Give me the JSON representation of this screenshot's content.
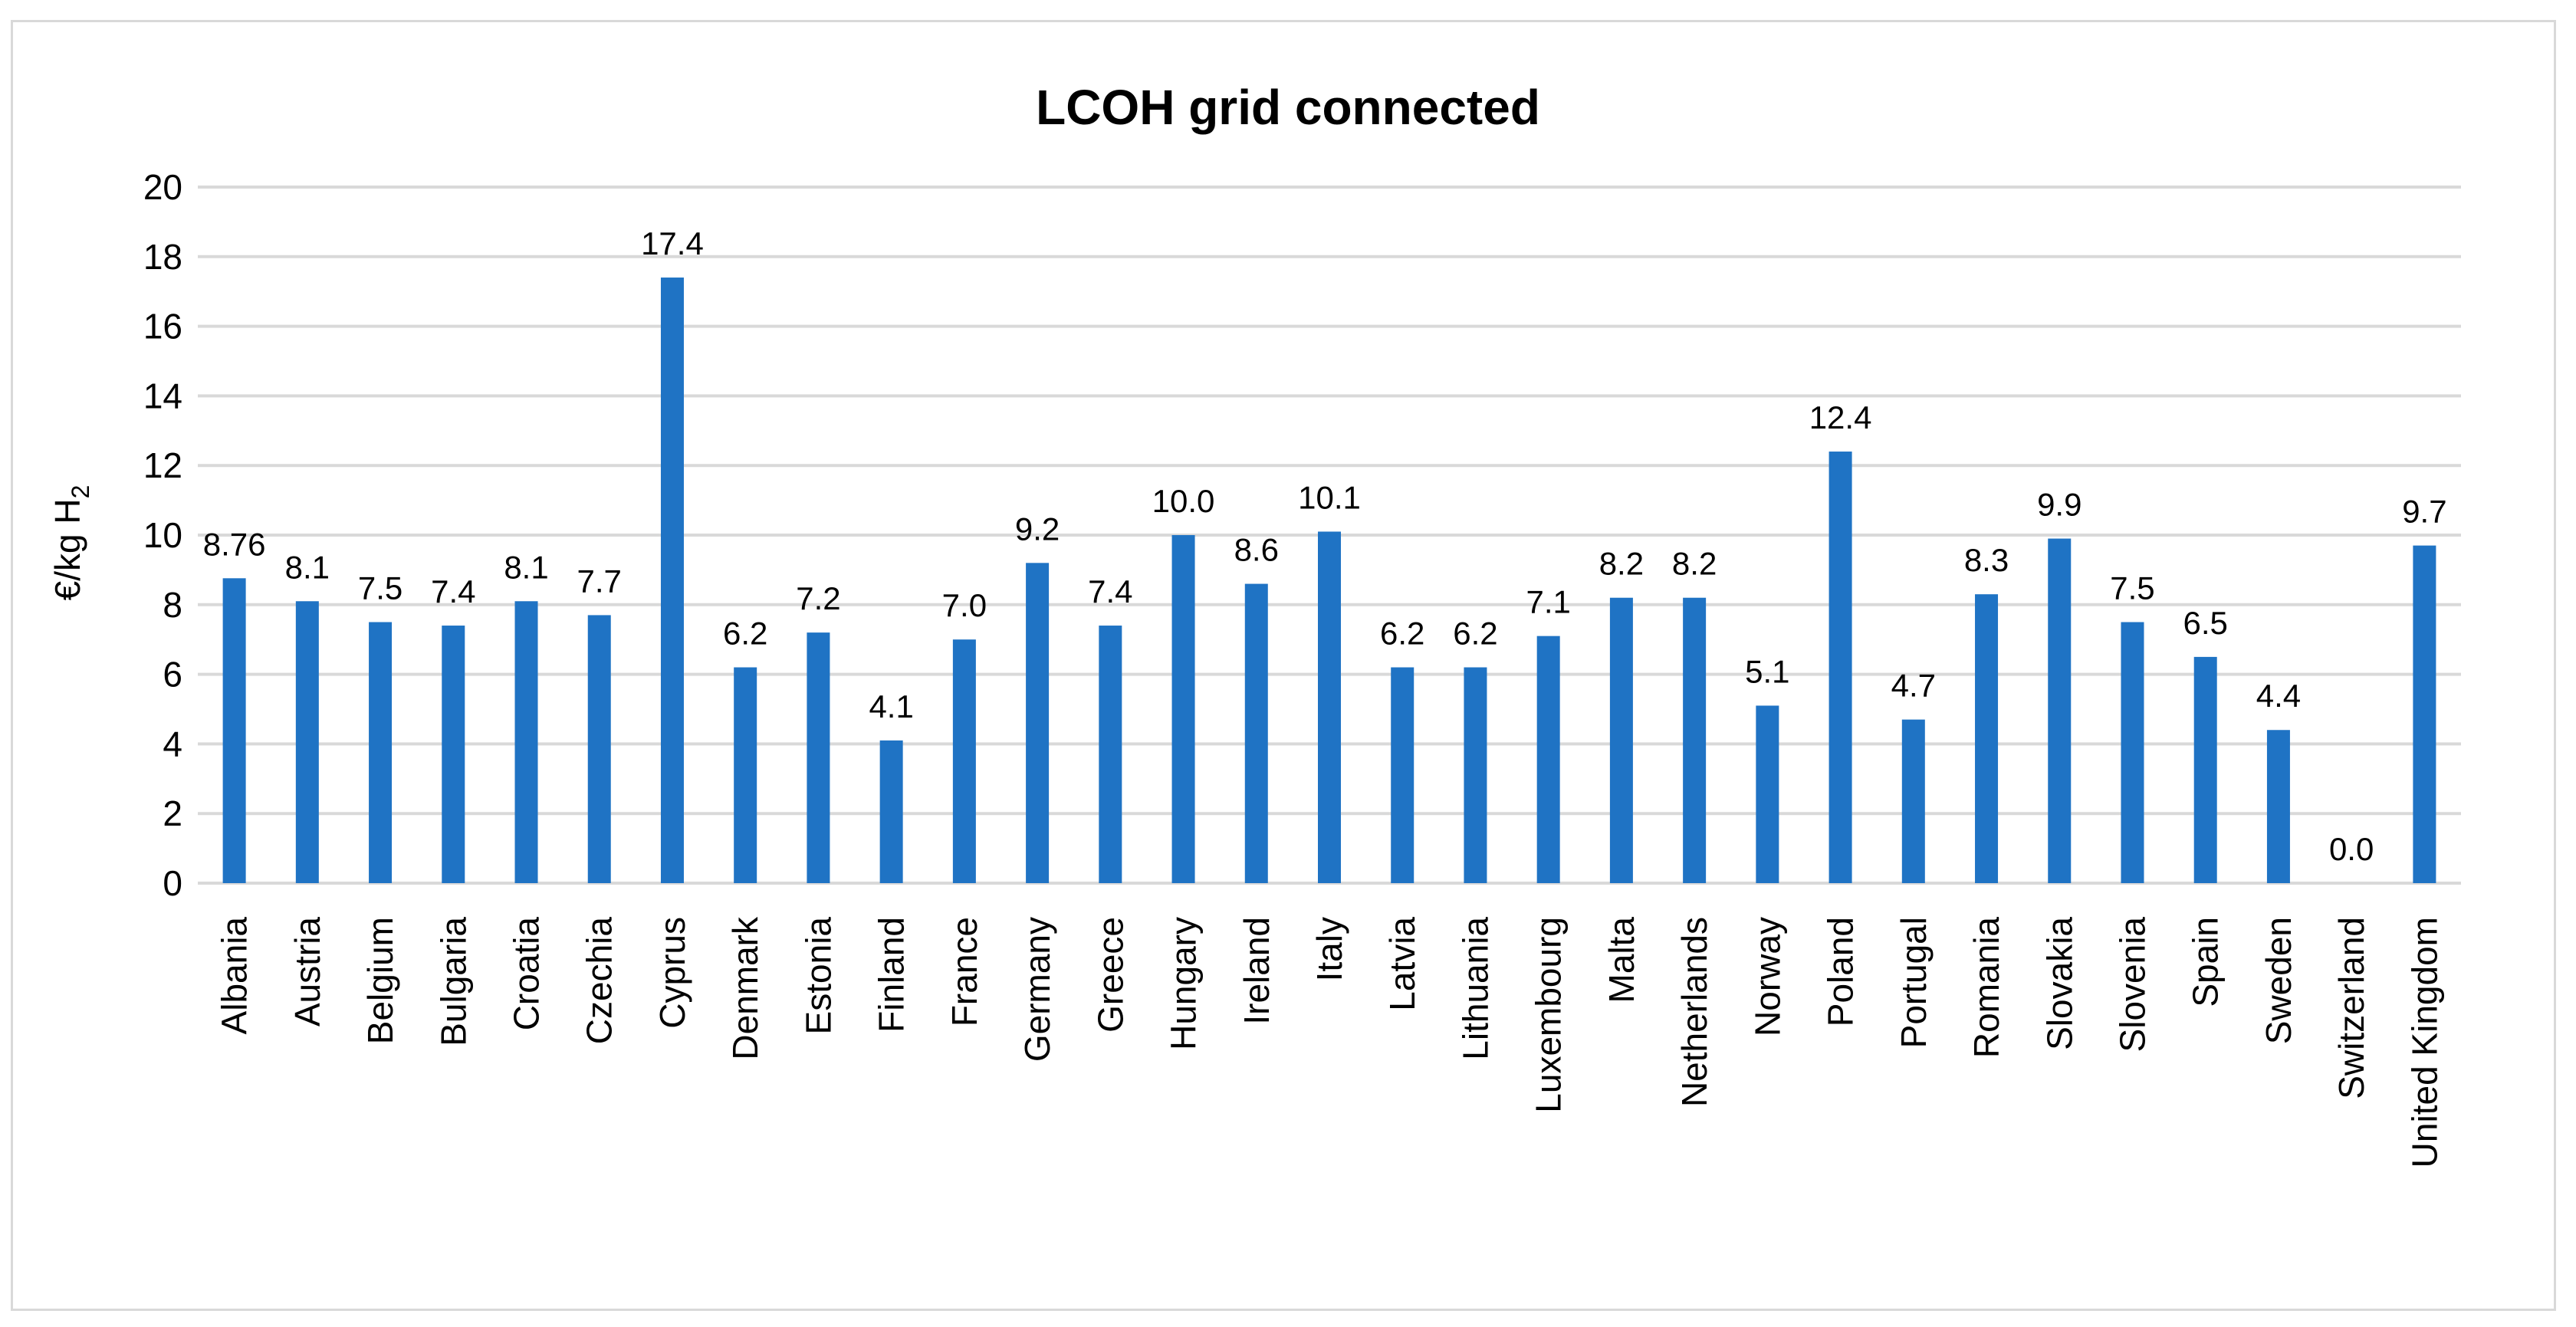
{
  "chart_data": {
    "type": "bar",
    "title": "LCOH grid connected",
    "ylabel": "€/kg H",
    "ylabel_subscript": "2",
    "ylim": [
      0,
      20
    ],
    "yticks": [
      0,
      2,
      4,
      6,
      8,
      10,
      12,
      14,
      16,
      18,
      20
    ],
    "grid": "horizontal",
    "bar_color": "#1f73c4",
    "categories": [
      "Albania",
      "Austria",
      "Belgium",
      "Bulgaria",
      "Croatia",
      "Czechia",
      "Cyprus",
      "Denmark",
      "Estonia",
      "Finland",
      "France",
      "Germany",
      "Greece",
      "Hungary",
      "Ireland",
      "Italy",
      "Latvia",
      "Lithuania",
      "Luxembourg",
      "Malta",
      "Netherlands",
      "Norway",
      "Poland",
      "Portugal",
      "Romania",
      "Slovakia",
      "Slovenia",
      "Spain",
      "Sweden",
      "Switzerland",
      "United Kingdom"
    ],
    "values": [
      8.76,
      8.1,
      7.5,
      7.4,
      8.1,
      7.7,
      17.4,
      6.2,
      7.2,
      4.1,
      7.0,
      9.2,
      7.4,
      10.0,
      8.6,
      10.1,
      6.2,
      6.2,
      7.1,
      8.2,
      8.2,
      5.1,
      12.4,
      4.7,
      8.3,
      9.9,
      7.5,
      6.5,
      4.4,
      0.0,
      9.7
    ],
    "data_labels": [
      "8.76",
      "8.1",
      "7.5",
      "7.4",
      "8.1",
      "7.7",
      "17.4",
      "6.2",
      "7.2",
      "4.1",
      "7.0",
      "9.2",
      "7.4",
      "10.0",
      "8.6",
      "10.1",
      "6.2",
      "6.2",
      "7.1",
      "8.2",
      "8.2",
      "5.1",
      "12.4",
      "4.7",
      "8.3",
      "9.9",
      "7.5",
      "6.5",
      "4.4",
      "0.0",
      "9.7"
    ]
  }
}
